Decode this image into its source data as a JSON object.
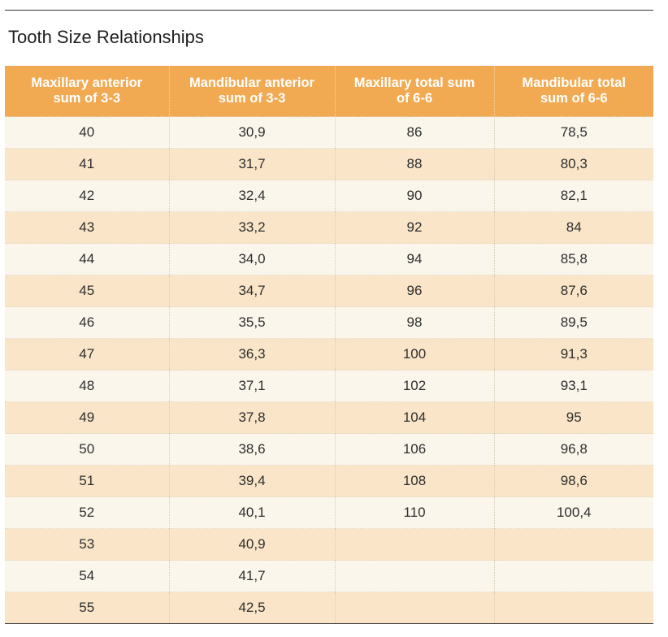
{
  "title": "Tooth Size Relationships",
  "columns": [
    "Maxillary anterior\nsum of 3-3",
    "Mandibular anterior\nsum of 3-3",
    "Maxillary total sum\nof 6-6",
    "Mandibular total\nsum of 6-6"
  ],
  "rows": [
    [
      "40",
      "30,9",
      "86",
      "78,5"
    ],
    [
      "41",
      "31,7",
      "88",
      "80,3"
    ],
    [
      "42",
      "32,4",
      "90",
      "82,1"
    ],
    [
      "43",
      "33,2",
      "92",
      "84"
    ],
    [
      "44",
      "34,0",
      "94",
      "85,8"
    ],
    [
      "45",
      "34,7",
      "96",
      "87,6"
    ],
    [
      "46",
      "35,5",
      "98",
      "89,5"
    ],
    [
      "47",
      "36,3",
      "100",
      "91,3"
    ],
    [
      "48",
      "37,1",
      "102",
      "93,1"
    ],
    [
      "49",
      "37,8",
      "104",
      "95"
    ],
    [
      "50",
      "38,6",
      "106",
      "96,8"
    ],
    [
      "51",
      "39,4",
      "108",
      "98,6"
    ],
    [
      "52",
      "40,1",
      "110",
      "100,4"
    ],
    [
      "53",
      "40,9",
      "",
      ""
    ],
    [
      "54",
      "41,7",
      "",
      ""
    ],
    [
      "55",
      "42,5",
      "",
      ""
    ]
  ],
  "colors": {
    "header_bg": "#f2aa52",
    "header_text": "#ffffff",
    "row_light": "#faf6ec",
    "row_dark": "#fae5c8"
  }
}
